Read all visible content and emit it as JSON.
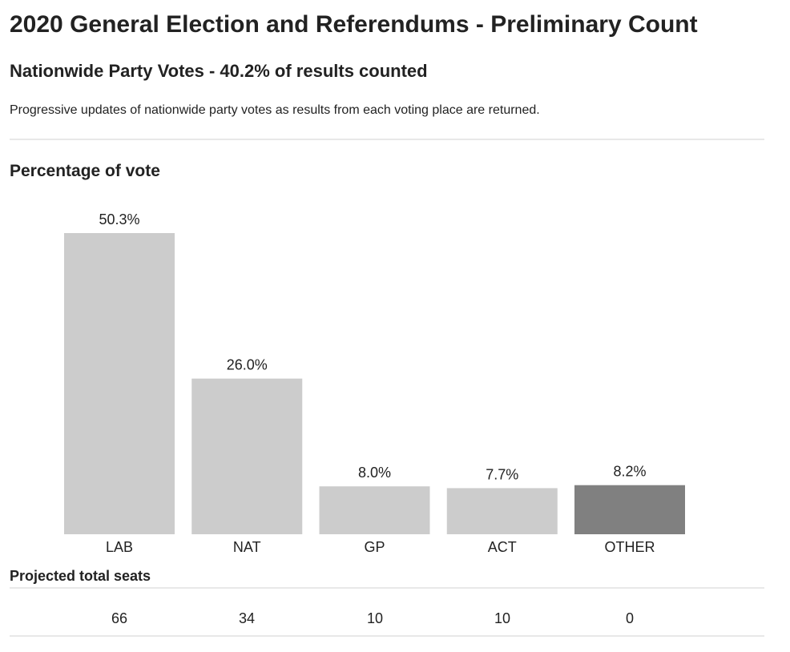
{
  "header": {
    "title": "2020 General Election and Referendums - Preliminary Count",
    "subtitle": "Nationwide Party Votes - 40.2% of results counted",
    "description": "Progressive updates of nationwide party votes as results from each voting place are returned."
  },
  "chart_heading": "Percentage of vote",
  "chart_data": {
    "type": "bar",
    "title": "Percentage of vote",
    "xlabel": "",
    "ylabel": "",
    "categories": [
      "LAB",
      "NAT",
      "GP",
      "ACT",
      "OTHER"
    ],
    "values": [
      50.3,
      26.0,
      8.0,
      7.7,
      8.2
    ],
    "value_labels": [
      "50.3%",
      "26.0%",
      "8.0%",
      "7.7%",
      "8.2%"
    ],
    "bar_colors": [
      "#cccccc",
      "#cccccc",
      "#cccccc",
      "#cccccc",
      "#808080"
    ],
    "ylim": [
      0,
      50.3
    ],
    "grid": false,
    "legend": "none"
  },
  "seats": {
    "heading": "Projected total seats",
    "values": [
      "66",
      "34",
      "10",
      "10",
      "0"
    ]
  },
  "colors": {
    "text": "#222222",
    "bar": "#cccccc",
    "bar_other": "#808080",
    "rule": "#e8e8e8"
  }
}
